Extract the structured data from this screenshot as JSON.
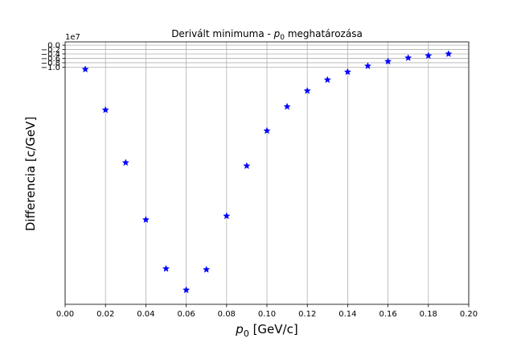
{
  "chart_data": {
    "type": "scatter",
    "title_prefix": "Derivált minimuma - ",
    "title_symbol": "p",
    "title_subscript": "0",
    "title_suffix": " meghatározása",
    "xlabel_symbol": "p",
    "xlabel_subscript": "0",
    "xlabel_suffix": " [GeV/c]",
    "ylabel": "Differencia [c/GeV]",
    "y_offset_text": "1e7",
    "y_scale": 10000000,
    "xlim": [
      0.0,
      0.2
    ],
    "ylim": [
      -11.8,
      0.15
    ],
    "x_ticks": [
      0.0,
      0.02,
      0.04,
      0.06,
      0.08,
      0.1,
      0.12,
      0.14,
      0.16,
      0.18,
      0.2
    ],
    "x_tick_labels": [
      "0.00",
      "0.02",
      "0.04",
      "0.06",
      "0.08",
      "0.10",
      "0.12",
      "0.14",
      "0.16",
      "0.18",
      "0.20"
    ],
    "y_ticks": [
      0.0,
      -0.2,
      -0.4,
      -0.6,
      -0.8,
      -1.0
    ],
    "y_tick_labels": [
      "0.0",
      "−0.2",
      "−0.4",
      "−0.6",
      "−0.8",
      "−1.0"
    ],
    "grid": true,
    "marker": "star",
    "marker_color": "#0000ff",
    "series": [
      {
        "x": [
          0.01,
          0.02,
          0.03,
          0.04,
          0.05,
          0.06,
          0.07,
          0.08,
          0.09,
          0.1,
          0.11,
          0.12,
          0.13,
          0.14,
          0.15,
          0.16,
          0.17,
          0.18,
          0.19
        ],
        "y": [
          -1.1,
          -2.95,
          -5.35,
          -7.95,
          -10.18,
          -11.15,
          -10.22,
          -7.78,
          -5.5,
          -3.9,
          -2.8,
          -2.08,
          -1.58,
          -1.22,
          -0.95,
          -0.74,
          -0.58,
          -0.48,
          -0.4
        ]
      }
    ]
  }
}
